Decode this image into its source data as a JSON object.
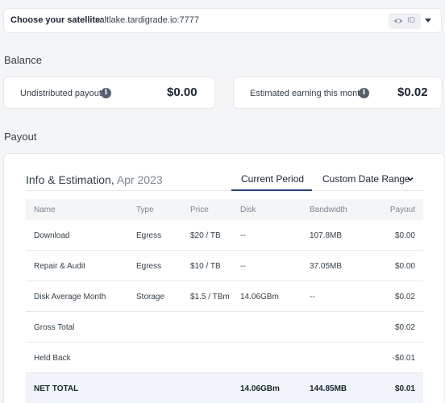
{
  "satellite": {
    "label": "Choose your satellite:",
    "value": "saltlake.tardigrade.io:7777",
    "id_label": "ID"
  },
  "balance": {
    "title": "Balance",
    "undistributed": {
      "label": "Undistributed payout",
      "amount": "$0.00"
    },
    "estimated": {
      "label": "Estimated earning this month",
      "amount": "$0.02"
    }
  },
  "payout": {
    "title": "Payout",
    "info_title": "Info & Estimation,",
    "period": "Apr 2023",
    "tabs": {
      "current": "Current Period",
      "custom": "Custom Date Range"
    },
    "columns": [
      "Name",
      "Type",
      "Price",
      "Disk",
      "Bandwidth",
      "Payout"
    ],
    "rows": [
      {
        "name": "Download",
        "type": "Egress",
        "price": "$20 / TB",
        "disk": "--",
        "bandwidth": "107.8MB",
        "payout": "$0.00"
      },
      {
        "name": "Repair & Audit",
        "type": "Egress",
        "price": "$10 / TB",
        "disk": "--",
        "bandwidth": "37.05MB",
        "payout": "$0.00"
      },
      {
        "name": "Disk Average Month",
        "type": "Storage",
        "price": "$1.5 / TBm",
        "disk": "14.06GBm",
        "bandwidth": "--",
        "payout": "$0.02"
      },
      {
        "name": "Gross Total",
        "type": "",
        "price": "",
        "disk": "",
        "bandwidth": "",
        "payout": "$0.02"
      },
      {
        "name": "Held Back",
        "type": "",
        "price": "",
        "disk": "",
        "bandwidth": "",
        "payout": "-$0.01"
      },
      {
        "name": "NET TOTAL",
        "type": "",
        "price": "",
        "disk": "14.06GBm",
        "bandwidth": "144.85MB",
        "payout": "$0.01"
      }
    ]
  }
}
